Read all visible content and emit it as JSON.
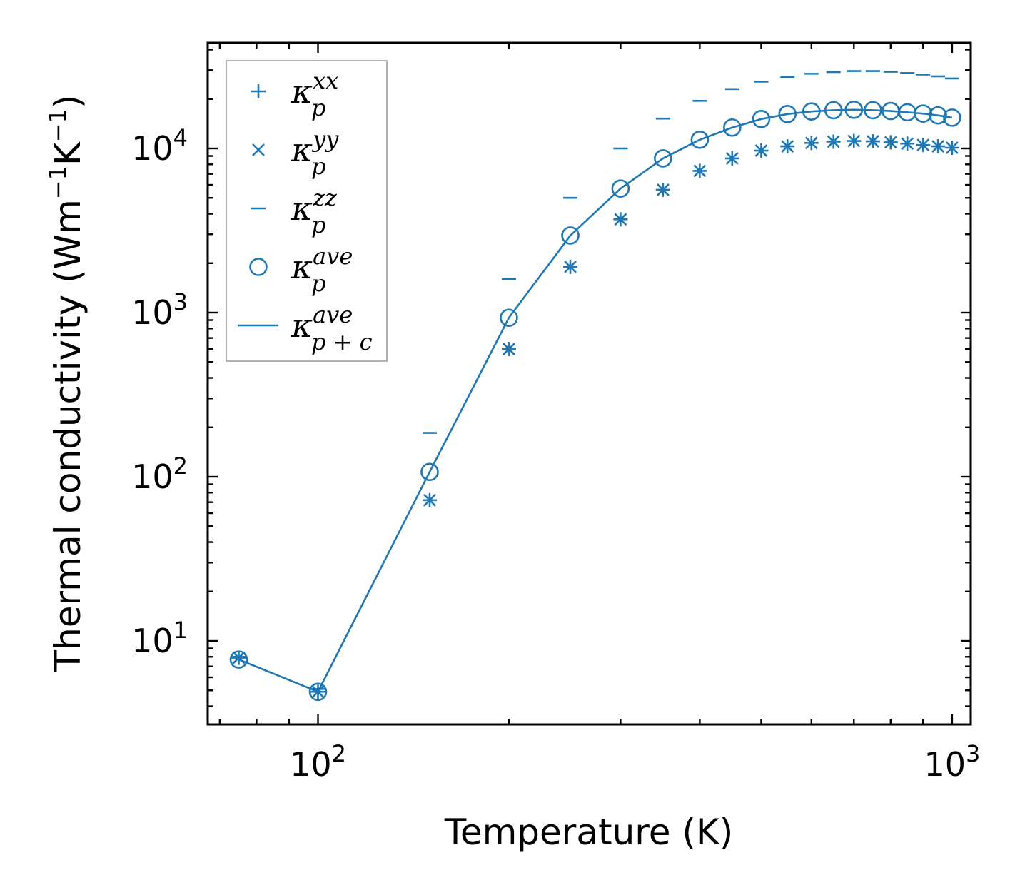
{
  "chart_data": {
    "type": "scatter",
    "xscale": "log",
    "yscale": "log",
    "xlim": [
      67,
      1070
    ],
    "ylim": [
      3.1,
      44000
    ],
    "xlabel": "Temperature (K)",
    "ylabel_text": "Thermal conductivity (Wm",
    "ylabel_exp1": "−1",
    "ylabel_mid": "K",
    "ylabel_exp2": "−1",
    "ylabel_end": ")",
    "x_ticks": [
      {
        "value": 100,
        "base": "10",
        "exp": "2"
      },
      {
        "value": 1000,
        "base": "10",
        "exp": "3"
      }
    ],
    "y_ticks": [
      {
        "value": 10,
        "base": "10",
        "exp": "1"
      },
      {
        "value": 100,
        "base": "10",
        "exp": "2"
      },
      {
        "value": 1000,
        "base": "10",
        "exp": "3"
      },
      {
        "value": 10000,
        "base": "10",
        "exp": "4"
      }
    ],
    "color": "#1f77b4",
    "x": [
      75,
      100,
      150,
      200,
      250,
      300,
      350,
      400,
      450,
      500,
      550,
      600,
      650,
      700,
      750,
      800,
      850,
      900,
      950,
      1000
    ],
    "series": [
      {
        "name": "kappa_p_xx",
        "marker": "+",
        "values": [
          7.9,
          4.9,
          72,
          600,
          1900,
          3700,
          5600,
          7300,
          8700,
          9700,
          10300,
          10800,
          11000,
          11100,
          11050,
          10900,
          10700,
          10500,
          10300,
          10100
        ]
      },
      {
        "name": "kappa_p_yy",
        "marker": "x",
        "values": [
          7.9,
          4.9,
          72,
          600,
          1900,
          3700,
          5600,
          7300,
          8700,
          9700,
          10300,
          10800,
          11000,
          11100,
          11050,
          10900,
          10700,
          10500,
          10300,
          10100
        ]
      },
      {
        "name": "kappa_p_zz",
        "marker": "_",
        "values": [
          8.0,
          5.1,
          185,
          1600,
          5000,
          10000,
          15200,
          19500,
          23000,
          25500,
          27300,
          28500,
          29200,
          29600,
          29600,
          29300,
          28800,
          28200,
          27500,
          26700
        ]
      },
      {
        "name": "kappa_p_ave",
        "marker": "o",
        "values": [
          7.7,
          4.9,
          107,
          930,
          2950,
          5700,
          8700,
          11300,
          13400,
          15100,
          16200,
          16800,
          17100,
          17200,
          17100,
          16900,
          16600,
          16300,
          15900,
          15400
        ]
      },
      {
        "name": "kappa_pc_ave",
        "marker": "line",
        "values": [
          7.7,
          4.9,
          107,
          930,
          2950,
          5700,
          8700,
          11300,
          13400,
          15100,
          16200,
          16800,
          17100,
          17200,
          17100,
          16900,
          16600,
          16300,
          15900,
          15400
        ]
      }
    ],
    "legend_location": "upper-left",
    "legend": [
      {
        "marker": "+",
        "base": "κ",
        "sup": "xx",
        "sub": "p"
      },
      {
        "marker": "x",
        "base": "κ",
        "sup": "yy",
        "sub": "p"
      },
      {
        "marker": "_",
        "base": "κ",
        "sup": "zz",
        "sub": "p"
      },
      {
        "marker": "o",
        "base": "κ",
        "sup": "ave",
        "sub": "p"
      },
      {
        "marker": "line",
        "base": "κ",
        "sup": "ave",
        "sub": "p + c"
      }
    ]
  }
}
